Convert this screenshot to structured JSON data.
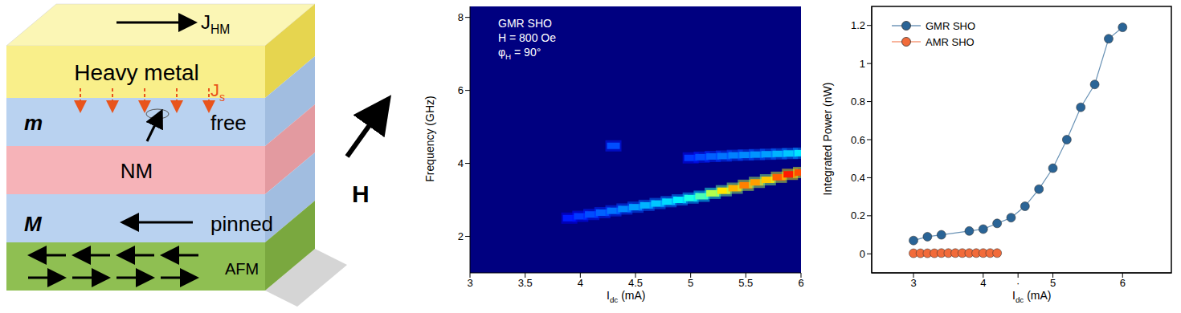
{
  "diagram": {
    "current": {
      "text": "J",
      "subscript": "HM"
    },
    "spin_current": {
      "text": "J",
      "subscript": "s"
    },
    "field": "H",
    "layers": [
      {
        "name": "Heavy metal"
      },
      {
        "symbol": "m",
        "name": "free"
      },
      {
        "name": "NM"
      },
      {
        "symbol": "M",
        "name": "pinned"
      },
      {
        "name": "AFM"
      }
    ]
  },
  "chart_data": [
    {
      "type": "heatmap",
      "annotation": {
        "lines": [
          "GMR SHO",
          "H = 800 Oe"
        ],
        "angle": {
          "text": "φ",
          "subscript": "H",
          "suffix": " = 90°"
        }
      },
      "x_label": {
        "text": "I",
        "subscript": "dc",
        "suffix": " (mA)"
      },
      "y_label": "Frequency (GHz)",
      "xlim": [
        3,
        6
      ],
      "xticks": [
        3,
        3.5,
        4,
        4.5,
        5,
        5.5,
        6
      ],
      "ylim": [
        1,
        8.3
      ],
      "yticks": [
        2,
        4,
        6,
        8
      ],
      "intensity_range": [
        0,
        1
      ],
      "modes": [
        {
          "x": [
            3.9,
            4.0,
            4.1,
            4.2,
            4.3,
            4.4,
            4.5,
            4.6,
            4.7,
            4.8,
            4.9,
            5.0,
            5.1,
            5.2,
            5.3,
            5.4,
            5.5,
            5.6,
            5.7,
            5.8,
            5.9,
            6.0
          ],
          "frequency": [
            2.5,
            2.55,
            2.6,
            2.65,
            2.7,
            2.75,
            2.8,
            2.85,
            2.9,
            2.95,
            3.0,
            3.05,
            3.1,
            3.18,
            3.25,
            3.32,
            3.4,
            3.48,
            3.55,
            3.62,
            3.7,
            3.75
          ],
          "intensity": [
            0.15,
            0.18,
            0.2,
            0.22,
            0.24,
            0.26,
            0.28,
            0.3,
            0.32,
            0.34,
            0.36,
            0.4,
            0.45,
            0.55,
            0.65,
            0.7,
            0.75,
            0.72,
            0.68,
            0.78,
            0.85,
            0.8
          ]
        },
        {
          "x": [
            5.0,
            5.1,
            5.2,
            5.3,
            5.4,
            5.5,
            5.6,
            5.7,
            5.8,
            5.9,
            6.0
          ],
          "frequency": [
            4.15,
            4.17,
            4.19,
            4.2,
            4.22,
            4.23,
            4.24,
            4.25,
            4.26,
            4.27,
            4.28
          ],
          "intensity": [
            0.18,
            0.2,
            0.22,
            0.24,
            0.25,
            0.26,
            0.27,
            0.28,
            0.3,
            0.32,
            0.35
          ]
        },
        {
          "x": [
            4.3
          ],
          "frequency": [
            4.48
          ],
          "intensity": [
            0.2
          ]
        }
      ]
    },
    {
      "type": "line",
      "x_label": {
        "text": "I",
        "subscript": "dc",
        "suffix": " (mA)"
      },
      "y_label": "Integrated Power (nW)",
      "xlim": [
        2.4,
        6.7
      ],
      "xticks": [
        3,
        4,
        {
          "value": 4.5,
          "label": "·"
        },
        5,
        6
      ],
      "ylim": [
        -0.1,
        1.3
      ],
      "yticks": [
        0,
        0.2,
        0.4,
        0.6,
        0.8,
        1,
        1.2
      ],
      "legend": "upper left",
      "series": [
        {
          "name": "GMR SHO",
          "color": "#2a6496",
          "marker": "circle",
          "x": [
            3.0,
            3.2,
            3.4,
            3.8,
            4.0,
            4.2,
            4.4,
            4.6,
            4.8,
            5.0,
            5.2,
            5.4,
            5.6,
            5.8,
            6.0
          ],
          "values": [
            0.07,
            0.09,
            0.1,
            0.12,
            0.13,
            0.16,
            0.19,
            0.25,
            0.34,
            0.45,
            0.6,
            0.77,
            0.89,
            1.13,
            1.19
          ]
        },
        {
          "name": "AMR SHO",
          "color": "#f26b3a",
          "marker": "circle",
          "x": [
            3.0,
            3.1,
            3.2,
            3.3,
            3.4,
            3.5,
            3.6,
            3.7,
            3.8,
            3.9,
            4.0,
            4.1,
            4.2
          ],
          "values": [
            0.003,
            0.003,
            0.003,
            0.003,
            0.004,
            0.004,
            0.004,
            0.004,
            0.004,
            0.004,
            0.004,
            0.004,
            0.004
          ]
        }
      ]
    }
  ]
}
